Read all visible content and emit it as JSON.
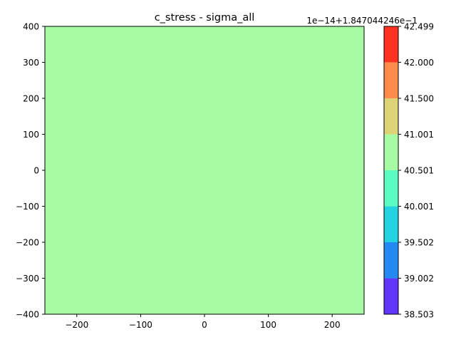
{
  "chart_data": {
    "type": "heatmap",
    "title": "c_stress - sigma_all",
    "xlim": [
      -250,
      250
    ],
    "ylim": [
      -400,
      400
    ],
    "x_ticks": [
      -200,
      -100,
      0,
      100,
      200
    ],
    "x_tick_labels": [
      "−200",
      "−100",
      "0",
      "100",
      "200"
    ],
    "y_ticks": [
      -400,
      -300,
      -200,
      -100,
      0,
      100,
      200,
      300,
      400
    ],
    "y_tick_labels": [
      "−400",
      "−300",
      "−200",
      "−100",
      "0",
      "100",
      "200",
      "300",
      "400"
    ],
    "fill_color": "#a6fba3",
    "colorbar": {
      "offset_text": "1e−14+1.847044246e−1",
      "levels": [
        38.503,
        39.002,
        39.502,
        40.001,
        40.501,
        41.001,
        41.5,
        42.0,
        42.499
      ],
      "level_labels": [
        "38.503",
        "39.002",
        "39.502",
        "40.001",
        "40.501",
        "41.001",
        "41.500",
        "42.000",
        "42.499"
      ],
      "colors": [
        "#6236fa",
        "#2489f0",
        "#24d3e2",
        "#5cfbc2",
        "#a6fba3",
        "#ded276",
        "#ff8c4c",
        "#ff3222"
      ]
    }
  }
}
